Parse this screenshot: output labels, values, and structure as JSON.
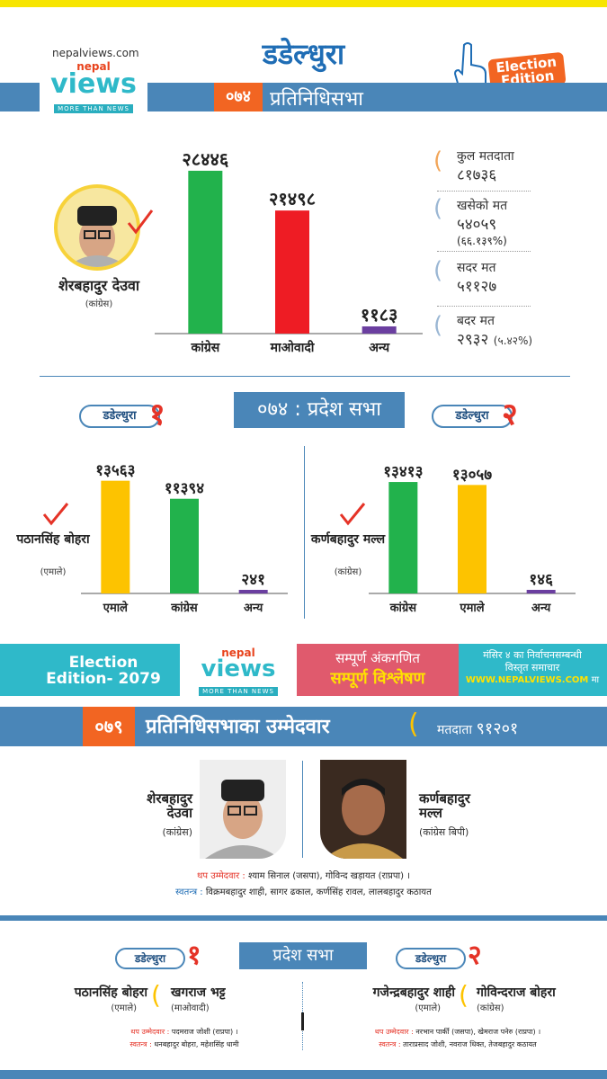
{
  "header": {
    "site": "nepalviews.com",
    "logo_nepal": "nepal",
    "logo_views": "views",
    "logo_tagline": "MORE THAN NEWS",
    "district_title": "डडेल्धुरा",
    "year_box": "०७४",
    "section_title": "प्रतिनिधिसभा",
    "edition_badge": "Election Edition"
  },
  "federal_2074": {
    "winner_name": "शेरबहादुर देउवा",
    "winner_party": "(कांग्रेस)",
    "stats": [
      {
        "label": "कुल मतदाता",
        "value": "८१७३६",
        "extra": ""
      },
      {
        "label": "खसेको मत",
        "value": "५४०५९",
        "extra": "(६६.१३९%)"
      },
      {
        "label": "सदर मत",
        "value": "५११२७",
        "extra": ""
      },
      {
        "label": "बदर मत",
        "value": "२९३२",
        "extra": "(५.४२%)"
      }
    ]
  },
  "chart_data": [
    {
      "type": "bar",
      "categories": [
        "कांग्रेस",
        "माओवादी",
        "अन्य"
      ],
      "values": [
        28446,
        21498,
        1183
      ],
      "value_labels": [
        "२८४४६",
        "२१४९८",
        "११८३"
      ],
      "colors": [
        "#22b24c",
        "#ee1c24",
        "#6b3fa0"
      ],
      "ylim": [
        0,
        30000
      ]
    },
    {
      "type": "bar",
      "categories": [
        "एमाले",
        "कांग्रेस",
        "अन्य"
      ],
      "values": [
        13563,
        11394,
        241
      ],
      "value_labels": [
        "१३५६३",
        "११३९४",
        "२४१"
      ],
      "colors": [
        "#fdc300",
        "#22b24c",
        "#6b3fa0"
      ],
      "ylim": [
        0,
        14500
      ]
    },
    {
      "type": "bar",
      "categories": [
        "कांग्रेस",
        "एमाले",
        "अन्य"
      ],
      "values": [
        13413,
        13057,
        146
      ],
      "value_labels": [
        "१३४१३",
        "१३०५७",
        "१४६"
      ],
      "colors": [
        "#22b24c",
        "#fdc300",
        "#6b3fa0"
      ],
      "ylim": [
        0,
        14500
      ]
    }
  ],
  "provincial_2074": {
    "title": "०७४ : प्रदेश सभा",
    "district1_label": "डडेल्धुरा",
    "district1_num": "१",
    "district1_winner": "पठानसिंह बोहरा",
    "district1_party": "(एमाले)",
    "district2_label": "डडेल्धुरा",
    "district2_num": "२",
    "district2_winner": "कर्णबहादुर मल्ल",
    "district2_party": "(कांग्रेस)"
  },
  "banner": {
    "edition": "Election Edition- 2079",
    "nepal": "nepal",
    "views": "views",
    "tagline": "MORE THAN NEWS",
    "pink_line1": "सम्पूर्ण अंकगणित",
    "pink_line2": "सम्पूर्ण विश्लेषण",
    "right_line1": "मंसिर ४ का निर्वाचनसम्बन्धी",
    "right_line2": "विस्तृत समाचार",
    "right_site": "WWW.NEPALVIEWS.COM",
    "right_suffix": "मा"
  },
  "candidates_2079": {
    "year_box": "०७९",
    "title": "प्रतिनिधिसभाका उम्मेदवार",
    "voters_label": "मतदाता",
    "voters_value": "९१२०१",
    "cand1_name_line1": "शेरबहादुर",
    "cand1_name_line2": "देउवा",
    "cand1_party": "(कांग्रेस)",
    "cand2_name_line1": "कर्णबहादुर",
    "cand2_name_line2": "मल्ल",
    "cand2_party": "(कांग्रेस बिपी)",
    "other_label": "थप उम्मेदवार :",
    "other_text": "श्याम सिनाल (जसपा), गोविन्द खड़ायत (राप्रपा) ।",
    "indep_label": "स्वतन्त्र :",
    "indep_text": "विक्रमबहादुर शाही, सागर ढकाल, कर्णसिंह रावल, लालबहादुर कठायत"
  },
  "provincial_2079": {
    "title": "प्रदेश सभा",
    "d1_label": "डडेल्धुरा",
    "d1_num": "१",
    "d1_cand1": "पठानसिंह बोहरा",
    "d1_cand1_party": "(एमाले)",
    "d1_cand2": "खगराज भट्ट",
    "d1_cand2_party": "(माओवादी)",
    "d1_other_label": "थप उम्मेदवार :",
    "d1_other": "पदमराज जोशी (राप्रपा) ।",
    "d1_indep_label": "स्वतन्त्र :",
    "d1_indep": "धनबहादुर बोहरा, महेशसिंह धामी",
    "d2_label": "डडेल्धुरा",
    "d2_num": "२",
    "d2_cand1": "गजेन्द्रबहादुर शाही",
    "d2_cand1_party": "(एमाले)",
    "d2_cand2": "गोविन्दराज बोहरा",
    "d2_cand2_party": "(कांग्रेस)",
    "d2_other_label": "थप उम्मेदवार :",
    "d2_other": "नरभान पार्की (जसपा), खेमराज पनेरु (राप्रपा) ।",
    "d2_indep_label": "स्वतन्त्र :",
    "d2_indep": "ताराप्रसाद जोशी, नवराज धिक्त, तेजबहादुर कठायत"
  },
  "colors": {
    "accent_blue": "#4a86b8",
    "orange": "#f26522",
    "red": "#e53327",
    "teal": "#2fb9c9",
    "pink": "#e05a6d"
  }
}
